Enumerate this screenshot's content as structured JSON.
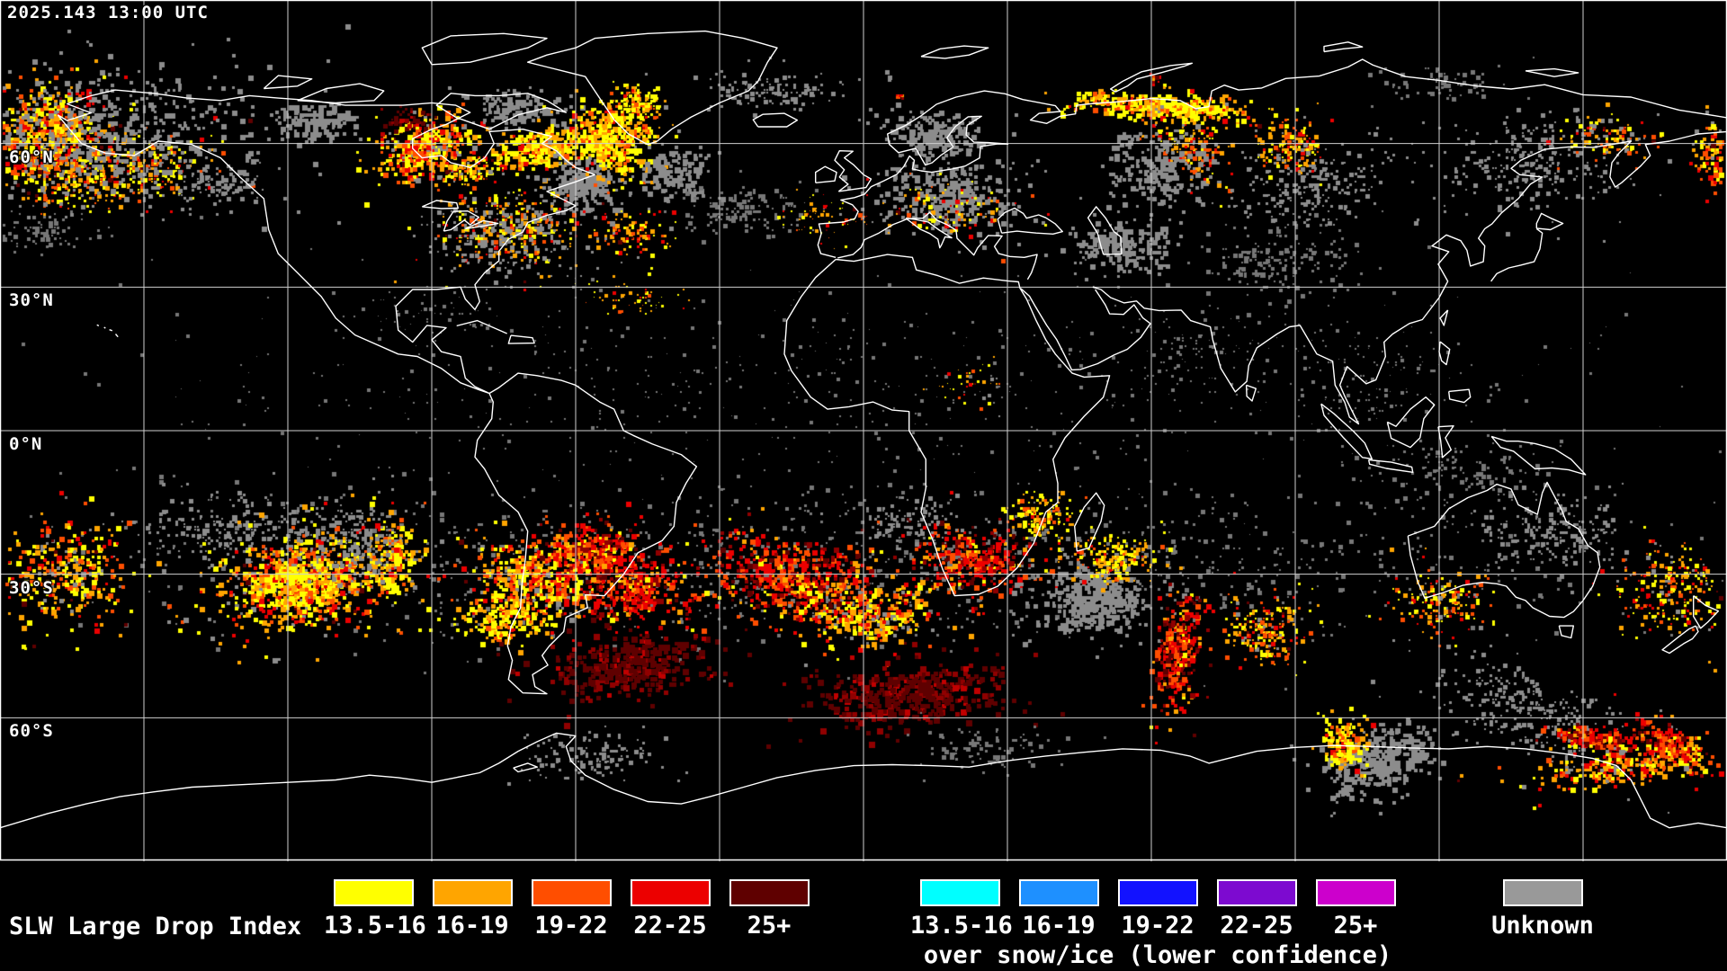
{
  "header": {
    "timestamp": "2025.143 13:00 UTC"
  },
  "map": {
    "lat_labels": [
      {
        "label": "60°N",
        "lat": 60
      },
      {
        "label": "30°N",
        "lat": 30
      },
      {
        "label": "0°N",
        "lat": 0
      },
      {
        "label": "30°S",
        "lat": -30
      },
      {
        "label": "60°S",
        "lat": -60
      }
    ],
    "grid": {
      "lon_interval_deg": 30,
      "lat_interval_deg": 30,
      "line_color": "#cfcfcf"
    },
    "colors": {
      "background": "#000000",
      "coastline": "#ffffff",
      "border": "#ffffff"
    },
    "data_layer": {
      "palettes": {
        "hot": [
          [
            "#ffff00",
            3
          ],
          [
            "#ffa500",
            3
          ],
          [
            "#ff4e00",
            2
          ],
          [
            "#ec0000",
            1.4
          ],
          [
            "#8c8c8c",
            0.8
          ],
          [
            "#5f0000",
            0.3
          ]
        ],
        "hotcore": [
          [
            "#ffff00",
            5
          ],
          [
            "#ffa500",
            3
          ],
          [
            "#ff4e00",
            1
          ],
          [
            "#ec0000",
            0.5
          ]
        ],
        "redheavy": [
          [
            "#ec0000",
            4
          ],
          [
            "#ff4e00",
            2.5
          ],
          [
            "#900000",
            1.5
          ],
          [
            "#5f0000",
            1.2
          ],
          [
            "#ffa500",
            1
          ],
          [
            "#ffff00",
            0.5
          ]
        ],
        "maroon": [
          [
            "#5f0000",
            7
          ],
          [
            "#900000",
            2
          ],
          [
            "#c00000",
            1
          ]
        ],
        "gray": [
          [
            "#8c8c8c",
            1
          ]
        ],
        "graydim": [
          [
            "#777777",
            1
          ]
        ]
      },
      "clusters": [
        [
          55,
          150,
          80,
          55,
          -15,
          650,
          "hot",
          4
        ],
        [
          130,
          190,
          110,
          40,
          -10,
          450,
          "hot",
          3
        ],
        [
          120,
          150,
          180,
          85,
          0,
          520,
          "gray",
          4
        ],
        [
          240,
          205,
          55,
          22,
          -5,
          110,
          "gray",
          3
        ],
        [
          40,
          255,
          70,
          25,
          0,
          90,
          "graydim",
          3
        ],
        [
          350,
          135,
          48,
          22,
          0,
          150,
          "gray",
          4
        ],
        [
          468,
          162,
          55,
          32,
          -20,
          430,
          "hot",
          4
        ],
        [
          525,
          188,
          45,
          16,
          -15,
          150,
          "hot",
          3
        ],
        [
          452,
          132,
          26,
          12,
          0,
          55,
          "maroon",
          3
        ],
        [
          572,
          118,
          48,
          20,
          0,
          140,
          "gray",
          4
        ],
        [
          602,
          162,
          55,
          24,
          -10,
          300,
          "hotcore",
          4
        ],
        [
          650,
          202,
          42,
          34,
          0,
          260,
          "gray",
          4
        ],
        [
          678,
          152,
          46,
          40,
          0,
          420,
          "hotcore",
          4
        ],
        [
          706,
          112,
          32,
          18,
          25,
          140,
          "hotcore",
          3
        ],
        [
          748,
          188,
          36,
          30,
          0,
          150,
          "gray",
          4
        ],
        [
          820,
          232,
          80,
          28,
          0,
          140,
          "graydim",
          3
        ],
        [
          565,
          252,
          85,
          45,
          0,
          330,
          "hot",
          3
        ],
        [
          560,
          258,
          88,
          46,
          0,
          240,
          "gray",
          3
        ],
        [
          705,
          258,
          52,
          30,
          0,
          110,
          "hot",
          3
        ],
        [
          1035,
          148,
          62,
          26,
          0,
          210,
          "gray",
          4
        ],
        [
          1050,
          215,
          85,
          40,
          0,
          330,
          "gray",
          4
        ],
        [
          1058,
          232,
          72,
          36,
          0,
          110,
          "hot",
          3
        ],
        [
          1295,
          118,
          90,
          16,
          3,
          400,
          "hotcore",
          4
        ],
        [
          1322,
          165,
          45,
          30,
          40,
          190,
          "hot",
          3
        ],
        [
          1285,
          185,
          62,
          45,
          0,
          240,
          "gray",
          4
        ],
        [
          1228,
          110,
          38,
          10,
          0,
          80,
          "hotcore",
          3
        ],
        [
          1420,
          290,
          95,
          45,
          0,
          180,
          "graydim",
          3
        ],
        [
          1248,
          272,
          62,
          30,
          0,
          210,
          "gray",
          4
        ],
        [
          1432,
          160,
          42,
          32,
          0,
          170,
          "hot",
          3
        ],
        [
          1455,
          205,
          82,
          50,
          0,
          230,
          "gray",
          3
        ],
        [
          1705,
          180,
          120,
          60,
          0,
          280,
          "gray",
          3
        ],
        [
          1785,
          152,
          52,
          25,
          0,
          110,
          "hot",
          3
        ],
        [
          1905,
          172,
          28,
          38,
          0,
          110,
          "hot",
          4
        ],
        [
          960,
          430,
          900,
          125,
          0,
          650,
          "graydim",
          2
        ],
        [
          705,
          330,
          60,
          20,
          0,
          55,
          "hotcore",
          2
        ],
        [
          1080,
          430,
          42,
          25,
          0,
          40,
          "hot",
          2
        ],
        [
          480,
          350,
          85,
          40,
          0,
          55,
          "graydim",
          2
        ],
        [
          960,
          622,
          950,
          95,
          0,
          1300,
          "graydim",
          3
        ],
        [
          255,
          588,
          120,
          40,
          0,
          230,
          "gray",
          3
        ],
        [
          70,
          635,
          75,
          58,
          0,
          330,
          "hot",
          4
        ],
        [
          332,
          645,
          95,
          55,
          -10,
          820,
          "hot",
          4
        ],
        [
          330,
          650,
          50,
          30,
          0,
          280,
          "hotcore",
          4
        ],
        [
          432,
          622,
          28,
          45,
          0,
          190,
          "hotcore",
          4
        ],
        [
          392,
          600,
          62,
          50,
          0,
          230,
          "gray",
          3
        ],
        [
          592,
          640,
          72,
          45,
          0,
          470,
          "hot",
          4
        ],
        [
          662,
          612,
          52,
          35,
          0,
          330,
          "redheavy",
          4
        ],
        [
          705,
          652,
          60,
          40,
          0,
          330,
          "redheavy",
          4
        ],
        [
          700,
          738,
          92,
          36,
          -5,
          340,
          "maroon",
          5
        ],
        [
          562,
          682,
          60,
          30,
          0,
          210,
          "hotcore",
          4
        ],
        [
          880,
          642,
          100,
          50,
          10,
          560,
          "redheavy",
          4
        ],
        [
          962,
          682,
          80,
          40,
          0,
          330,
          "hot",
          4
        ],
        [
          1012,
          770,
          110,
          36,
          -5,
          420,
          "maroon",
          5
        ],
        [
          1082,
          622,
          72,
          40,
          15,
          330,
          "redheavy",
          4
        ],
        [
          1152,
          572,
          42,
          25,
          0,
          140,
          "hotcore",
          3
        ],
        [
          1215,
          666,
          62,
          40,
          0,
          420,
          "gray",
          4
        ],
        [
          1238,
          620,
          52,
          30,
          0,
          200,
          "hotcore",
          3
        ],
        [
          1308,
          722,
          26,
          72,
          10,
          330,
          "redheavy",
          4
        ],
        [
          1402,
          702,
          46,
          40,
          0,
          230,
          "hot",
          3
        ],
        [
          1532,
          842,
          72,
          36,
          -20,
          380,
          "gray",
          4
        ],
        [
          1492,
          826,
          26,
          30,
          0,
          170,
          "hotcore",
          4
        ],
        [
          1598,
          668,
          55,
          38,
          0,
          170,
          "hot",
          3
        ],
        [
          1700,
          790,
          120,
          45,
          22,
          330,
          "gray",
          3
        ],
        [
          1772,
          820,
          42,
          13,
          8,
          190,
          "redheavy",
          4
        ],
        [
          1852,
          826,
          46,
          20,
          30,
          220,
          "redheavy",
          4
        ],
        [
          1800,
          852,
          110,
          25,
          -8,
          260,
          "hot",
          4
        ],
        [
          1855,
          655,
          68,
          58,
          0,
          240,
          "hot",
          3
        ],
        [
          1722,
          592,
          80,
          45,
          0,
          200,
          "gray",
          3
        ],
        [
          652,
          842,
          82,
          28,
          0,
          130,
          "gray",
          3
        ],
        [
          1102,
          832,
          82,
          24,
          0,
          100,
          "graydim",
          3
        ],
        [
          852,
          100,
          92,
          24,
          0,
          140,
          "gray",
          3
        ],
        [
          1600,
          92,
          82,
          20,
          0,
          70,
          "graydim",
          3
        ],
        [
          1283,
          86,
          8,
          5,
          0,
          10,
          "redheavy",
          3
        ],
        [
          1010,
          580,
          62,
          30,
          0,
          110,
          "gray",
          3
        ],
        [
          1330,
          380,
          92,
          50,
          0,
          80,
          "graydim",
          2
        ],
        [
          1520,
          420,
          100,
          60,
          0,
          100,
          "graydim",
          2
        ],
        [
          1625,
          522,
          120,
          40,
          0,
          130,
          "graydim",
          3
        ],
        [
          912,
          242,
          60,
          25,
          0,
          80,
          "hot",
          2
        ],
        [
          1000,
          107,
          6,
          4,
          0,
          6,
          "redheavy",
          3
        ]
      ]
    }
  },
  "legend": {
    "title": "SLW Large Drop Index",
    "classes": [
      "13.5-16",
      "16-19",
      "19-22",
      "22-25",
      "25+"
    ],
    "standard_colors": [
      "#ffff00",
      "#ffa500",
      "#ff4e00",
      "#ec0000",
      "#5f0000"
    ],
    "snow_ice_colors": [
      "#00ffff",
      "#1e90ff",
      "#1212ff",
      "#7d0ad0",
      "#cc00cc"
    ],
    "snow_ice_note": "over snow/ice (lower confidence)",
    "unknown": {
      "label": "Unknown",
      "color": "#999999"
    }
  }
}
